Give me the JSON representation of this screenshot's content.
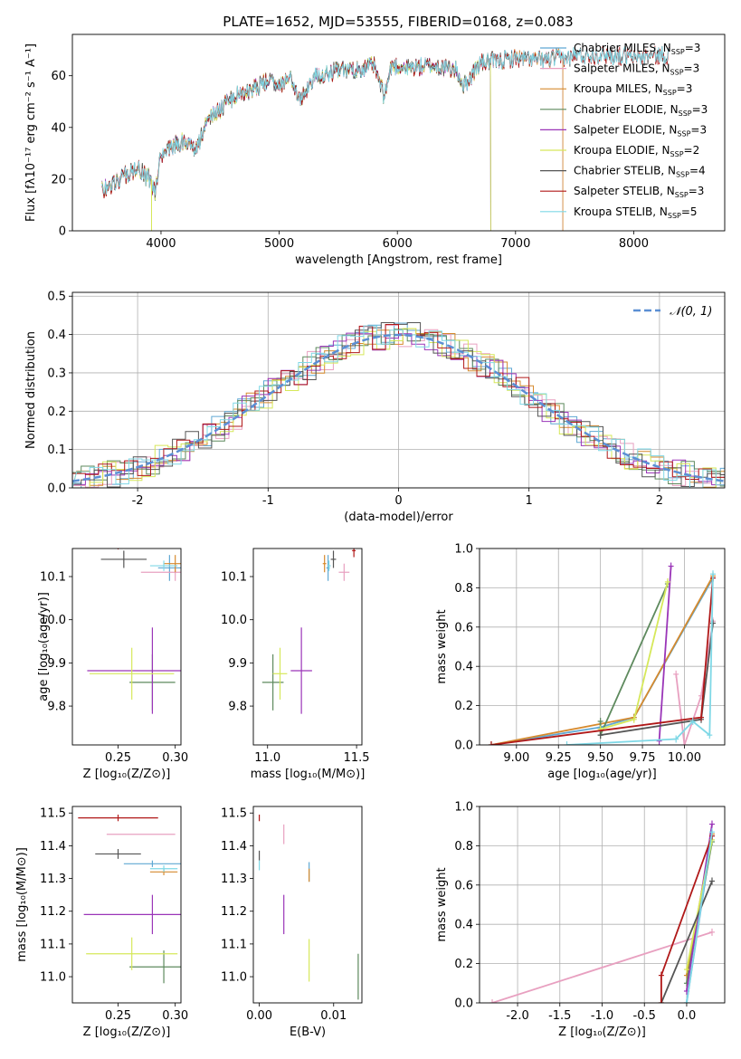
{
  "figure": {
    "title": "PLATE=1652, MJD=53555, FIBERID=0168, z=0.083"
  },
  "colors": {
    "Chabrier MILES": "#5fa8d3",
    "Salpeter MILES": "#e8a0c0",
    "Kroupa MILES": "#d68a2e",
    "Chabrier ELODIE": "#5e8a5e",
    "Salpeter ELODIE": "#9a35b8",
    "Kroupa ELODIE": "#d6e85a",
    "Chabrier STELIB": "#555555",
    "Salpeter STELIB": "#b01818",
    "Kroupa STELIB": "#7fd8e6"
  },
  "chart_data": [
    {
      "type": "line",
      "title": "PLATE=1652, MJD=53555, FIBERID=0168, z=0.083",
      "xlabel": "wavelength [Angstrom, rest frame]",
      "ylabel": "Flux [fλ10⁻¹⁷ erg cm⁻² s⁻¹ A⁻¹]",
      "xlim": [
        3250,
        8770
      ],
      "ylim": [
        0,
        76
      ],
      "xticks": [
        4000,
        5000,
        6000,
        7000,
        8000
      ],
      "yticks": [
        0,
        20,
        40,
        60
      ],
      "legend_position": "top-right",
      "legend": [
        {
          "name": "Chabrier MILES",
          "nssp": "3"
        },
        {
          "name": "Salpeter MILES",
          "nssp": "3"
        },
        {
          "name": "Kroupa MILES",
          "nssp": "3"
        },
        {
          "name": "Chabrier ELODIE",
          "nssp": "3"
        },
        {
          "name": "Salpeter ELODIE",
          "nssp": "3"
        },
        {
          "name": "Kroupa ELODIE",
          "nssp": "2"
        },
        {
          "name": "Chabrier STELIB",
          "nssp": "4"
        },
        {
          "name": "Salpeter STELIB",
          "nssp": "3"
        },
        {
          "name": "Kroupa STELIB",
          "nssp": "5"
        }
      ],
      "spectrum_anchors": [
        [
          3500,
          16
        ],
        [
          3600,
          18
        ],
        [
          3700,
          22
        ],
        [
          3800,
          24
        ],
        [
          3900,
          20
        ],
        [
          3950,
          15
        ],
        [
          4000,
          30
        ],
        [
          4100,
          33
        ],
        [
          4200,
          35
        ],
        [
          4300,
          31
        ],
        [
          4400,
          44
        ],
        [
          4500,
          47
        ],
        [
          4600,
          51
        ],
        [
          4700,
          54
        ],
        [
          4800,
          55
        ],
        [
          4900,
          58
        ],
        [
          5000,
          57
        ],
        [
          5100,
          59
        ],
        [
          5175,
          50
        ],
        [
          5300,
          60
        ],
        [
          5400,
          61
        ],
        [
          5500,
          62
        ],
        [
          5600,
          62
        ],
        [
          5700,
          63
        ],
        [
          5800,
          64
        ],
        [
          5890,
          52
        ],
        [
          5950,
          64
        ],
        [
          6100,
          63
        ],
        [
          6300,
          64
        ],
        [
          6500,
          62
        ],
        [
          6563,
          56
        ],
        [
          6700,
          65
        ],
        [
          6900,
          66
        ],
        [
          7000,
          67
        ],
        [
          7200,
          66
        ],
        [
          7400,
          67
        ],
        [
          7600,
          68
        ],
        [
          7800,
          68
        ],
        [
          8000,
          67
        ],
        [
          8200,
          68
        ],
        [
          8300,
          68
        ]
      ],
      "model_end_wavelength": {
        "Chabrier MILES": 7400,
        "Salpeter MILES": 7400,
        "Kroupa MILES": 7400,
        "Chabrier ELODIE": 6790,
        "Salpeter ELODIE": 6790,
        "Kroupa ELODIE": 6790,
        "Chabrier STELIB": 8300,
        "Salpeter STELIB": 8300,
        "Kroupa STELIB": 8300
      }
    },
    {
      "type": "histogram",
      "xlabel": "(data-model)/error",
      "ylabel": "Normed distribution",
      "xlim": [
        -2.5,
        2.5
      ],
      "ylim": [
        0,
        0.51
      ],
      "xticks": [
        -2,
        -1,
        0,
        1,
        2
      ],
      "yticks": [
        0.0,
        0.1,
        0.2,
        0.3,
        0.4,
        0.5
      ],
      "grid": true,
      "legend_position": "top-right",
      "gaussian_label": "𝒩(0, 1)",
      "gaussian": {
        "mean": 0,
        "sigma": 1,
        "range": [
          -2.5,
          2.5
        ]
      },
      "bin_width": 0.1
    },
    {
      "type": "scatter",
      "name": "age vs Z",
      "xlabel": "Z [log₁₀(Z/Z⊙)]",
      "ylabel": "age  [log₁₀(age/yr)]",
      "xlim": [
        0.21,
        0.305
      ],
      "ylim": [
        9.71,
        10.165
      ],
      "xticks": [
        0.25,
        0.3
      ],
      "yticks": [
        9.8,
        9.9,
        10.0,
        10.1
      ],
      "points": [
        {
          "model": "Chabrier MILES",
          "x": 0.295,
          "y": 10.12,
          "xerr": 0.01,
          "yerr": 0.03
        },
        {
          "model": "Salpeter MILES",
          "x": 0.3,
          "y": 10.11,
          "xerr": 0.03,
          "yerr": 0.02
        },
        {
          "model": "Kroupa MILES",
          "x": 0.3,
          "y": 10.13,
          "xerr": 0.01,
          "yerr": 0.02
        },
        {
          "model": "Chabrier ELODIE",
          "x": 0.28,
          "y": 9.855,
          "xerr": 0.02,
          "yerr": 0.065
        },
        {
          "model": "Salpeter ELODIE",
          "x": 0.28,
          "y": 9.882,
          "xerr": 0.057,
          "yerr": 0.1
        },
        {
          "model": "Kroupa ELODIE",
          "x": 0.262,
          "y": 9.875,
          "xerr": 0.037,
          "yerr": 0.06
        },
        {
          "model": "Chabrier STELIB",
          "x": 0.255,
          "y": 10.14,
          "xerr": 0.02,
          "yerr": 0.02
        },
        {
          "model": "Salpeter STELIB",
          "x": 0.25,
          "y": 10.168,
          "xerr": 0.035,
          "yerr": 0.005
        },
        {
          "model": "Kroupa STELIB",
          "x": 0.29,
          "y": 10.125,
          "xerr": 0.012,
          "yerr": 0.012
        }
      ]
    },
    {
      "type": "scatter",
      "name": "age vs mass",
      "xlabel": "mass [log₁₀(M/M⊙)]",
      "ylabel": "",
      "xlim": [
        10.92,
        11.53
      ],
      "ylim": [
        9.71,
        10.165
      ],
      "xticks": [
        11.0,
        11.5
      ],
      "yticks": [
        9.8,
        9.9,
        10.0,
        10.1
      ],
      "points": [
        {
          "model": "Chabrier MILES",
          "x": 11.34,
          "y": 10.12,
          "xerr": 0.01,
          "yerr": 0.03
        },
        {
          "model": "Salpeter MILES",
          "x": 11.43,
          "y": 10.11,
          "xerr": 0.03,
          "yerr": 0.02
        },
        {
          "model": "Kroupa MILES",
          "x": 11.32,
          "y": 10.13,
          "xerr": 0.01,
          "yerr": 0.02
        },
        {
          "model": "Chabrier ELODIE",
          "x": 11.03,
          "y": 9.855,
          "xerr": 0.06,
          "yerr": 0.065
        },
        {
          "model": "Salpeter ELODIE",
          "x": 11.19,
          "y": 9.882,
          "xerr": 0.06,
          "yerr": 0.1
        },
        {
          "model": "Kroupa ELODIE",
          "x": 11.07,
          "y": 9.875,
          "xerr": 0.04,
          "yerr": 0.06
        },
        {
          "model": "Chabrier STELIB",
          "x": 11.37,
          "y": 10.14,
          "xerr": 0.015,
          "yerr": 0.02
        },
        {
          "model": "Salpeter STELIB",
          "x": 11.485,
          "y": 10.16,
          "xerr": 0.01,
          "yerr": 0.015
        },
        {
          "model": "Kroupa STELIB",
          "x": 11.345,
          "y": 10.125,
          "xerr": 0.01,
          "yerr": 0.012
        }
      ]
    },
    {
      "type": "line",
      "name": "mass weight vs age",
      "xlabel": "age  [log₁₀(age/yr)]",
      "ylabel": "mass weight",
      "xlim": [
        8.78,
        10.24
      ],
      "ylim": [
        0,
        1.0
      ],
      "xticks": [
        9.0,
        9.25,
        9.5,
        9.75,
        10.0
      ],
      "xtick_labels": [
        "9.00",
        "9.25",
        "9.50",
        "9.75",
        "10.00"
      ],
      "yticks": [
        0.0,
        0.2,
        0.4,
        0.6,
        0.8,
        1.0
      ],
      "grid": true,
      "series": [
        {
          "model": "Chabrier MILES",
          "x": [
            8.85,
            9.5,
            9.7,
            10.17
          ],
          "y": [
            0.0,
            0.09,
            0.14,
            0.85
          ]
        },
        {
          "model": "Salpeter MILES",
          "x": [
            9.95,
            10.0,
            10.1,
            10.17
          ],
          "y": [
            0.36,
            0.0,
            0.25,
            0.63
          ]
        },
        {
          "model": "Kroupa MILES",
          "x": [
            8.85,
            9.7,
            10.17
          ],
          "y": [
            0.0,
            0.14,
            0.86
          ]
        },
        {
          "model": "Chabrier ELODIE",
          "x": [
            9.5,
            9.5,
            9.9
          ],
          "y": [
            0.12,
            0.05,
            0.82
          ]
        },
        {
          "model": "Salpeter ELODIE",
          "x": [
            9.85,
            9.92
          ],
          "y": [
            0.02,
            0.91
          ]
        },
        {
          "model": "Kroupa ELODIE",
          "x": [
            9.5,
            9.7,
            9.9
          ],
          "y": [
            0.08,
            0.13,
            0.83
          ]
        },
        {
          "model": "Chabrier STELIB",
          "x": [
            9.5,
            10.1,
            10.17
          ],
          "y": [
            0.05,
            0.13,
            0.62
          ]
        },
        {
          "model": "Salpeter STELIB",
          "x": [
            8.85,
            10.1,
            10.17
          ],
          "y": [
            0.0,
            0.14,
            0.85
          ]
        },
        {
          "model": "Kroupa STELIB",
          "x": [
            9.3,
            9.95,
            10.05,
            10.15,
            10.17
          ],
          "y": [
            0.0,
            0.03,
            0.12,
            0.05,
            0.87
          ]
        }
      ]
    },
    {
      "type": "scatter",
      "name": "mass vs Z",
      "xlabel": "Z [log₁₀(Z/Z⊙)]",
      "ylabel": "mass [log₁₀(M/M⊙)]",
      "xlim": [
        0.21,
        0.305
      ],
      "ylim": [
        10.92,
        11.52
      ],
      "xticks": [
        0.25,
        0.3
      ],
      "yticks": [
        11.0,
        11.1,
        11.2,
        11.3,
        11.4,
        11.5
      ],
      "points": [
        {
          "model": "Chabrier MILES",
          "x": 0.28,
          "y": 11.345,
          "xerr": 0.025,
          "yerr": 0.01
        },
        {
          "model": "Salpeter MILES",
          "x": 0.27,
          "y": 11.435,
          "xerr": 0.03,
          "yerr": 0.0
        },
        {
          "model": "Kroupa MILES",
          "x": 0.29,
          "y": 11.32,
          "xerr": 0.012,
          "yerr": 0.01
        },
        {
          "model": "Chabrier ELODIE",
          "x": 0.29,
          "y": 11.03,
          "xerr": 0.03,
          "yerr": 0.05
        },
        {
          "model": "Salpeter ELODIE",
          "x": 0.28,
          "y": 11.19,
          "xerr": 0.06,
          "yerr": 0.06
        },
        {
          "model": "Kroupa ELODIE",
          "x": 0.262,
          "y": 11.07,
          "xerr": 0.04,
          "yerr": 0.05
        },
        {
          "model": "Chabrier STELIB",
          "x": 0.25,
          "y": 11.375,
          "xerr": 0.02,
          "yerr": 0.015
        },
        {
          "model": "Salpeter STELIB",
          "x": 0.25,
          "y": 11.485,
          "xerr": 0.035,
          "yerr": 0.01
        },
        {
          "model": "Kroupa STELIB",
          "x": 0.29,
          "y": 11.33,
          "xerr": 0.012,
          "yerr": 0.01
        }
      ]
    },
    {
      "type": "scatter",
      "name": "mass vs E(B-V)",
      "xlabel": "E(B-V)",
      "ylabel": "",
      "xlim": [
        -0.0008,
        0.0138
      ],
      "ylim": [
        10.92,
        11.52
      ],
      "xticks": [
        0.0,
        0.01
      ],
      "xtick_labels": [
        "0.00",
        "0.01"
      ],
      "yticks": [
        11.0,
        11.1,
        11.2,
        11.3,
        11.4,
        11.5
      ],
      "points": [
        {
          "model": "Chabrier MILES",
          "x": 0.0067,
          "y": 11.32,
          "xerr": 0.0,
          "yerr": 0.03
        },
        {
          "model": "Salpeter MILES",
          "x": 0.0033,
          "y": 11.435,
          "xerr": 0.0,
          "yerr": 0.03
        },
        {
          "model": "Kroupa MILES",
          "x": 0.0067,
          "y": 11.31,
          "xerr": 0.0,
          "yerr": 0.02
        },
        {
          "model": "Chabrier ELODIE",
          "x": 0.0133,
          "y": 11.0,
          "xerr": 0.0,
          "yerr": 0.07
        },
        {
          "model": "Salpeter ELODIE",
          "x": 0.0033,
          "y": 11.19,
          "xerr": 0.0,
          "yerr": 0.06
        },
        {
          "model": "Kroupa ELODIE",
          "x": 0.0067,
          "y": 11.05,
          "xerr": 0.0,
          "yerr": 0.065
        },
        {
          "model": "Chabrier STELIB",
          "x": 0.0,
          "y": 11.37,
          "xerr": 0.0,
          "yerr": 0.015
        },
        {
          "model": "Salpeter STELIB",
          "x": 0.0,
          "y": 11.485,
          "xerr": 0.0,
          "yerr": 0.01
        },
        {
          "model": "Kroupa STELIB",
          "x": 0.0,
          "y": 11.34,
          "xerr": 0.0,
          "yerr": 0.015
        }
      ]
    },
    {
      "type": "line",
      "name": "mass weight vs Z",
      "xlabel": "Z [log₁₀(Z/Z⊙)]",
      "ylabel": "mass weight",
      "xlim": [
        -2.45,
        0.45
      ],
      "ylim": [
        0,
        1.0
      ],
      "xticks": [
        -2.0,
        -1.5,
        -1.0,
        -0.5,
        0.0
      ],
      "yticks": [
        0.0,
        0.2,
        0.4,
        0.6,
        0.8,
        1.0
      ],
      "grid": true,
      "series": [
        {
          "model": "Chabrier MILES",
          "x": [
            0.0,
            0.3
          ],
          "y": [
            0.0,
            0.85
          ]
        },
        {
          "model": "Salpeter MILES",
          "x": [
            -2.3,
            0.3
          ],
          "y": [
            0.0,
            0.36
          ]
        },
        {
          "model": "Kroupa MILES",
          "x": [
            0.0,
            0.3
          ],
          "y": [
            0.14,
            0.86
          ]
        },
        {
          "model": "Chabrier ELODIE",
          "x": [
            0.0,
            0.3
          ],
          "y": [
            0.1,
            0.82
          ]
        },
        {
          "model": "Salpeter ELODIE",
          "x": [
            0.0,
            0.3
          ],
          "y": [
            0.06,
            0.91
          ]
        },
        {
          "model": "Kroupa ELODIE",
          "x": [
            0.0,
            0.3
          ],
          "y": [
            0.17,
            0.83
          ]
        },
        {
          "model": "Chabrier STELIB",
          "x": [
            -0.3,
            0.3
          ],
          "y": [
            0.0,
            0.62
          ]
        },
        {
          "model": "Salpeter STELIB",
          "x": [
            -0.3,
            -0.3,
            0.3
          ],
          "y": [
            0.0,
            0.14,
            0.85
          ]
        },
        {
          "model": "Kroupa STELIB",
          "x": [
            0.0,
            0.3
          ],
          "y": [
            0.0,
            0.87
          ]
        }
      ]
    }
  ]
}
